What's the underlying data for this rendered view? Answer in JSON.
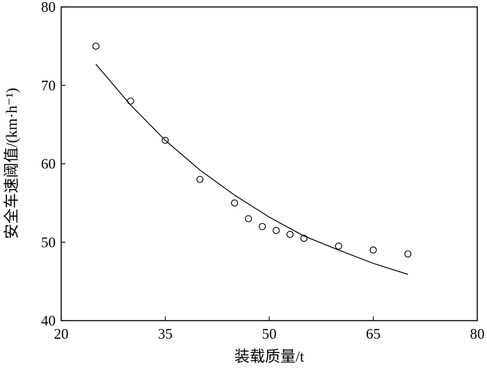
{
  "chart_data": {
    "type": "scatter",
    "x_label": "装载质量/t",
    "y_label": "安全车速阈值/(km·h⁻¹)",
    "xlim": [
      20,
      80
    ],
    "xticks": [
      20,
      35,
      50,
      65,
      80
    ],
    "ylim": [
      40,
      80
    ],
    "yticks": [
      40,
      50,
      60,
      70,
      80
    ],
    "series": [
      {
        "type": "scatter",
        "color": "#000000",
        "x": [
          25,
          30,
          35,
          40,
          45,
          47,
          49,
          51,
          53,
          55,
          60,
          65,
          70
        ],
        "values": [
          75,
          68,
          63,
          58,
          55,
          53,
          52,
          51.5,
          51,
          50.5,
          49.5,
          49,
          48.5
        ]
      },
      {
        "type": "line",
        "color": "#000000",
        "x": [
          25,
          30,
          35,
          40,
          45,
          50,
          55,
          60,
          65,
          70
        ],
        "values": [
          72.7,
          67.5,
          63,
          59.2,
          56,
          53.2,
          50.8,
          49,
          47.3,
          45.9
        ]
      }
    ]
  }
}
